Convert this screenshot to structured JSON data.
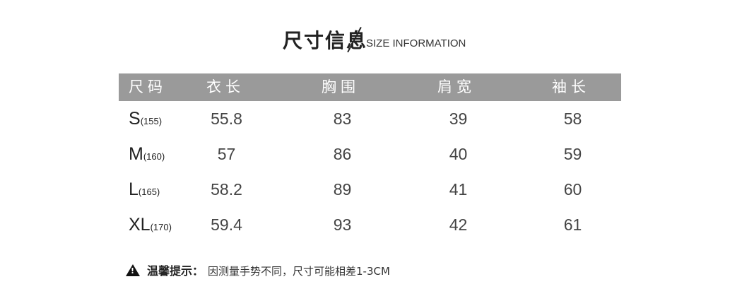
{
  "title": {
    "chinese": "尺寸信息",
    "english": "SIZE INFORMATION"
  },
  "table": {
    "headers": [
      "尺码",
      "衣长",
      "胸围",
      "肩宽",
      "袖长"
    ],
    "rows": [
      {
        "size": "S",
        "height": "(155)",
        "length": "55.8",
        "chest": "83",
        "shoulder": "39",
        "sleeve": "58"
      },
      {
        "size": "M",
        "height": "(160)",
        "length": "57",
        "chest": "86",
        "shoulder": "40",
        "sleeve": "59"
      },
      {
        "size": "L",
        "height": "(165)",
        "length": "58.2",
        "chest": "89",
        "shoulder": "41",
        "sleeve": "60"
      },
      {
        "size": "XL",
        "height": "(170)",
        "length": "59.4",
        "chest": "93",
        "shoulder": "42",
        "sleeve": "61"
      }
    ]
  },
  "note": {
    "icon": "warning-triangle-icon",
    "label": "温馨提示：",
    "text": "因测量手势不同，尺寸可能相差1-3CM"
  },
  "colors": {
    "header_bg": "#9a9a9a",
    "header_text": "#ffffff",
    "body_text": "#444444"
  }
}
